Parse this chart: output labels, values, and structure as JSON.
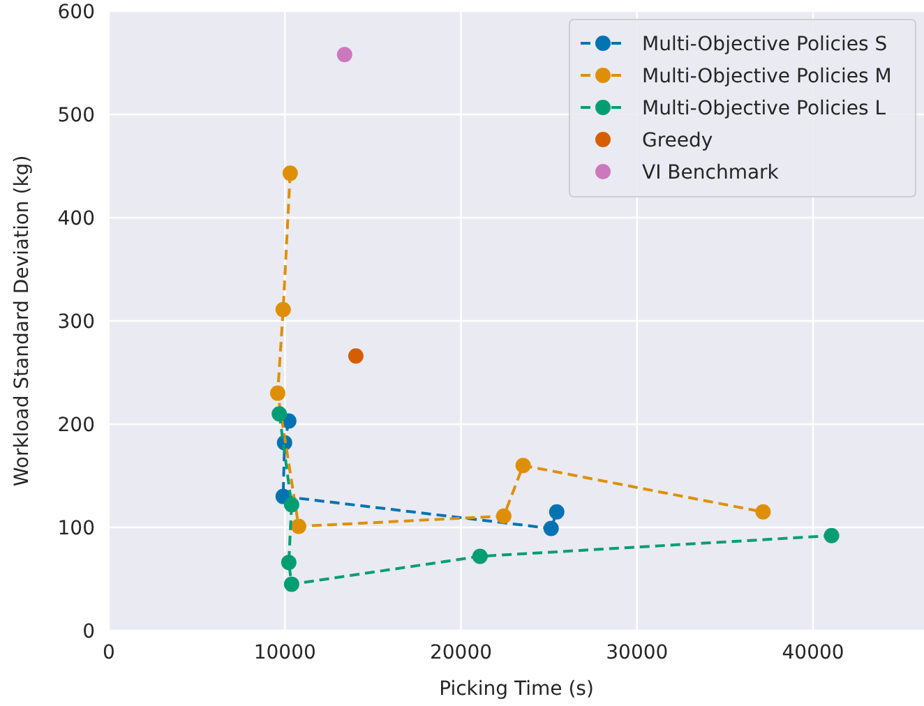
{
  "chart_data": {
    "type": "line",
    "xlabel": "Picking Time (s)",
    "ylabel": "Workload Standard Deviation (kg)",
    "xlim": [
      0,
      46300
    ],
    "ylim": [
      0,
      600
    ],
    "xticks": [
      0,
      10000,
      20000,
      30000,
      40000
    ],
    "yticks": [
      0,
      100,
      200,
      300,
      400,
      500,
      600
    ],
    "grid": true,
    "legend": "top right",
    "marker": "circle",
    "line_style": "dashed",
    "series": [
      {
        "name": "Multi-Objective Policies S",
        "color": "#0173b2",
        "x": [
          10220,
          9980,
          9900,
          25120,
          25440
        ],
        "values": [
          203,
          182,
          130,
          99,
          115
        ]
      },
      {
        "name": "Multi-Objective Policies M",
        "color": "#de8f05",
        "x": [
          10300,
          9900,
          9590,
          10780,
          22430,
          23530,
          37160
        ],
        "values": [
          443,
          311,
          230,
          101,
          111,
          160,
          115
        ]
      },
      {
        "name": "Multi-Objective Policies L",
        "color": "#029e73",
        "x": [
          9680,
          10380,
          10220,
          10380,
          21080,
          41050
        ],
        "values": [
          210,
          122,
          66,
          45,
          72,
          92
        ]
      },
      {
        "name": "Greedy",
        "type": "scatter",
        "color": "#d55e00",
        "x": [
          14030
        ],
        "values": [
          266
        ]
      },
      {
        "name": "VI Benchmark",
        "type": "scatter",
        "color": "#cc78bc",
        "x": [
          13390
        ],
        "values": [
          558
        ]
      }
    ]
  }
}
